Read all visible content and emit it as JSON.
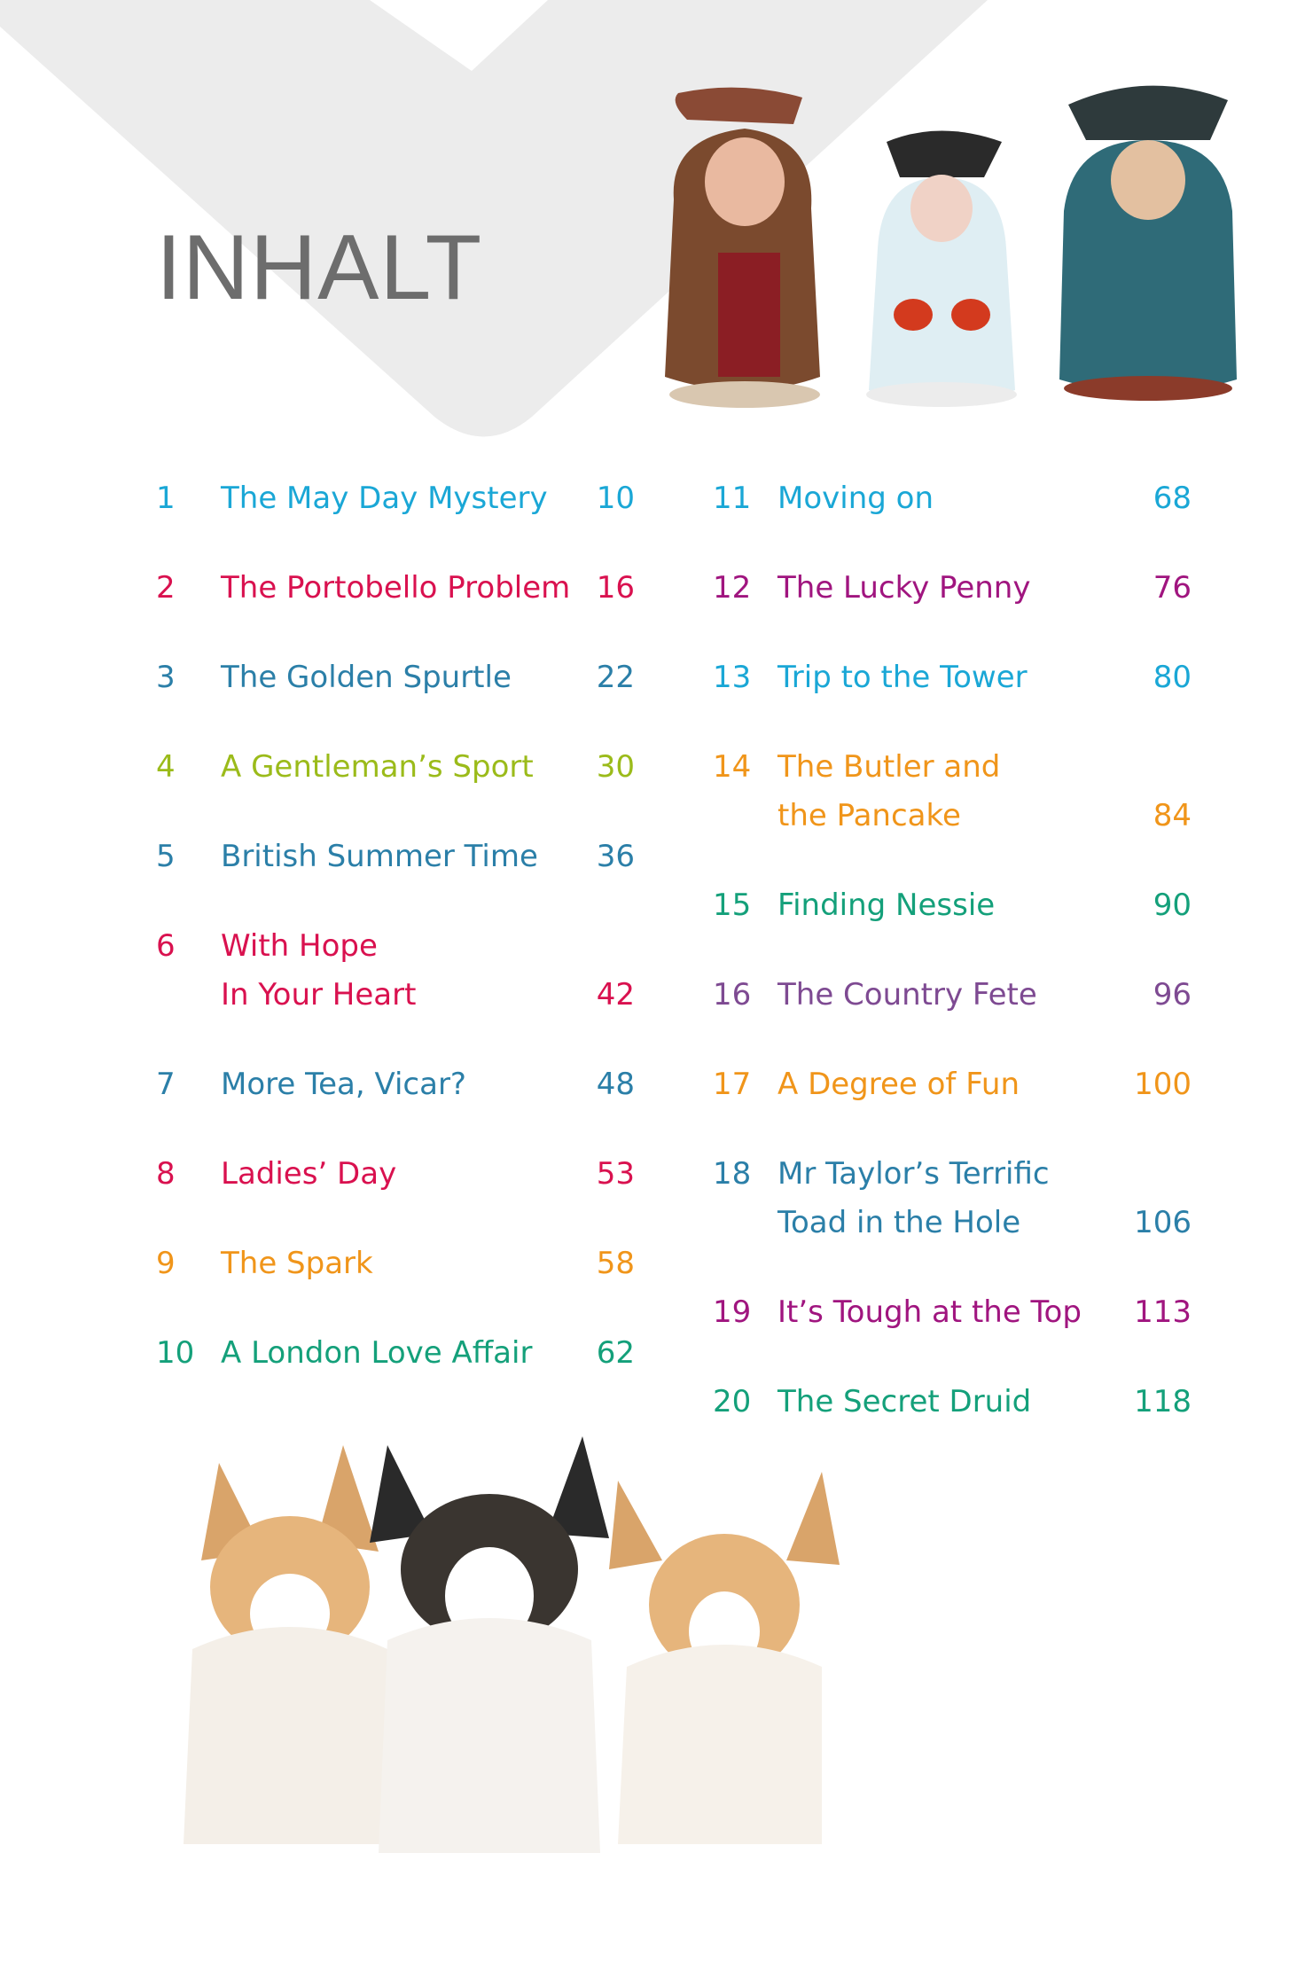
{
  "heading": "INHALT",
  "colors": {
    "cyan": "#1aa7d6",
    "crimson": "#d9114f",
    "steel": "#2b7fa8",
    "lime": "#9bbb1a",
    "magenta": "#a0157f",
    "orange": "#f0951a",
    "green": "#14a07a",
    "purple": "#7e4a92",
    "background_shape": "#ececec"
  },
  "toc_left": [
    {
      "num": "1",
      "lines": [
        "The May Day Mystery"
      ],
      "page": "10",
      "color": "cyan"
    },
    {
      "num": "2",
      "lines": [
        "The Portobello Problem"
      ],
      "page": "16",
      "color": "crimson"
    },
    {
      "num": "3",
      "lines": [
        "The Golden Spurtle"
      ],
      "page": "22",
      "color": "steel"
    },
    {
      "num": "4",
      "lines": [
        "A Gentleman’s Sport"
      ],
      "page": "30",
      "color": "lime"
    },
    {
      "num": "5",
      "lines": [
        "British Summer Time"
      ],
      "page": "36",
      "color": "steel"
    },
    {
      "num": "6",
      "lines": [
        "With Hope",
        "In Your Heart"
      ],
      "page": "42",
      "color": "crimson"
    },
    {
      "num": "7",
      "lines": [
        "More Tea, Vicar?"
      ],
      "page": "48",
      "color": "steel"
    },
    {
      "num": "8",
      "lines": [
        "Ladies’ Day"
      ],
      "page": "53",
      "color": "crimson"
    },
    {
      "num": "9",
      "lines": [
        "The Spark"
      ],
      "page": "58",
      "color": "orange"
    },
    {
      "num": "10",
      "lines": [
        "A London Love Affair"
      ],
      "page": "62",
      "color": "green"
    }
  ],
  "toc_right": [
    {
      "num": "11",
      "lines": [
        "Moving on"
      ],
      "page": "68",
      "color": "cyan"
    },
    {
      "num": "12",
      "lines": [
        "The Lucky Penny"
      ],
      "page": "76",
      "color": "magenta"
    },
    {
      "num": "13",
      "lines": [
        "Trip to the Tower"
      ],
      "page": "80",
      "color": "cyan"
    },
    {
      "num": "14",
      "lines": [
        "The Butler and",
        "the Pancake"
      ],
      "page": "84",
      "color": "orange"
    },
    {
      "num": "15",
      "lines": [
        "Finding Nessie"
      ],
      "page": "90",
      "color": "green"
    },
    {
      "num": "16",
      "lines": [
        "The Country Fete"
      ],
      "page": "96",
      "color": "purple"
    },
    {
      "num": "17",
      "lines": [
        "A Degree of Fun"
      ],
      "page": "100",
      "color": "orange"
    },
    {
      "num": "18",
      "lines": [
        "Mr Taylor’s Terrific",
        "Toad in the Hole"
      ],
      "page": "106",
      "color": "steel"
    },
    {
      "num": "19",
      "lines": [
        "It’s Tough at the Top"
      ],
      "page": "113",
      "color": "magenta"
    },
    {
      "num": "20",
      "lines": [
        "The Secret Druid"
      ],
      "page": "118",
      "color": "green"
    }
  ],
  "images": [
    "toby-jug-monk",
    "toby-jug-lady",
    "toby-jug-seated-man",
    "three-corgis"
  ]
}
